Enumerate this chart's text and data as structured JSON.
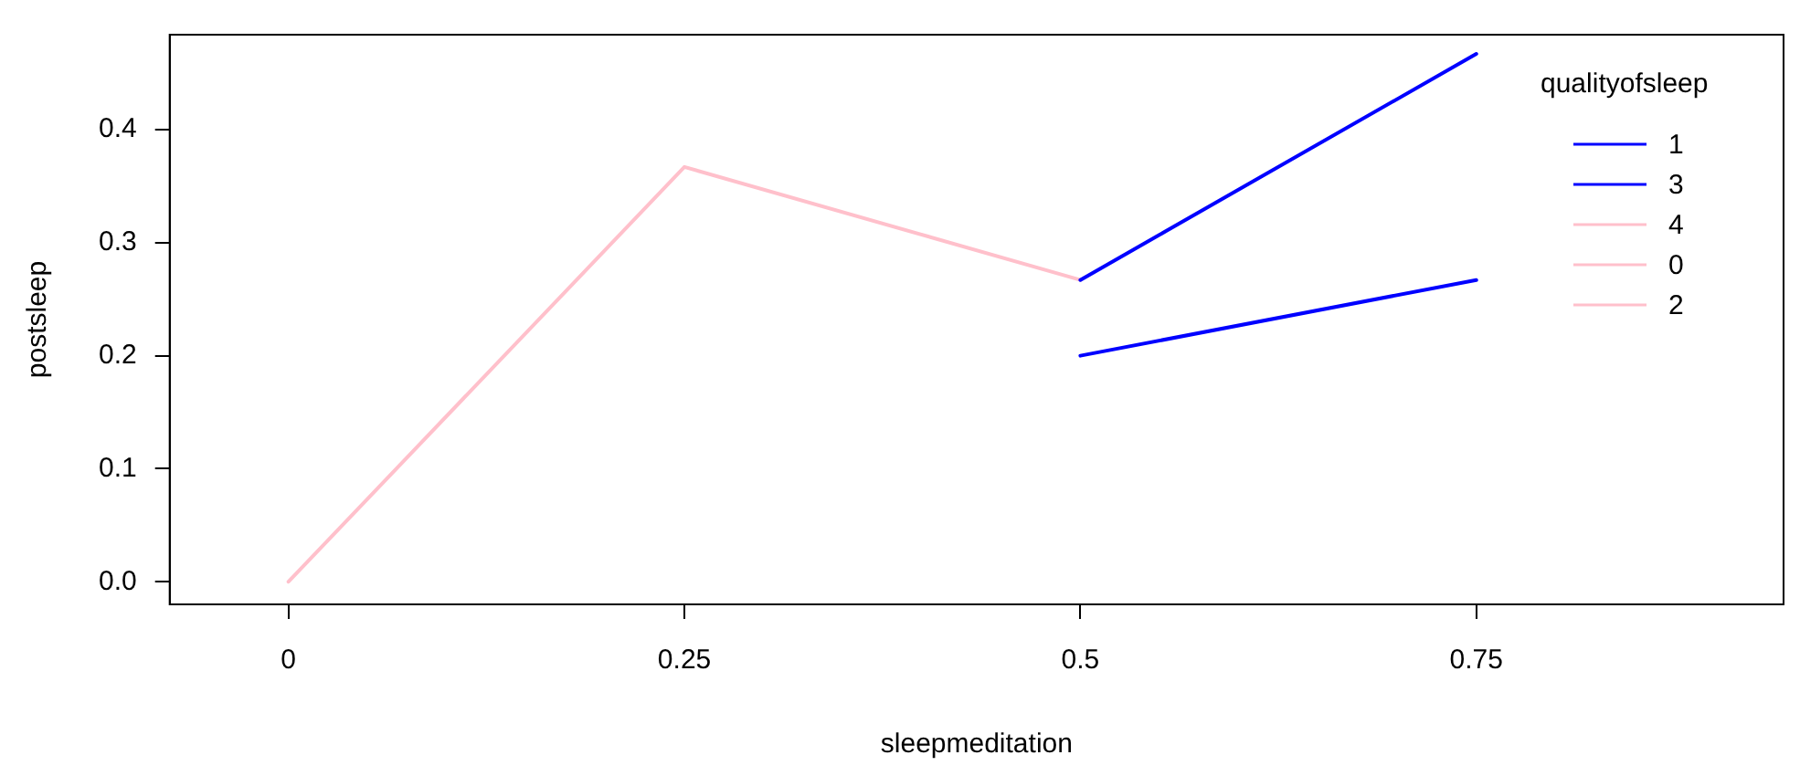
{
  "chart_data": {
    "type": "line",
    "xlabel": "sleepmeditation",
    "ylabel": "postsleep",
    "legend_title": "qualityofsleep",
    "legend": "top right",
    "grid": false,
    "line_style": "solid",
    "marker": "none",
    "x": [
      0,
      0.25,
      0.5,
      0.75
    ],
    "xlim": [
      -0.075,
      0.944
    ],
    "xticks": [
      0,
      0.25,
      0.5,
      0.75
    ],
    "ylim": [
      -0.02,
      0.484
    ],
    "yticks": [
      {
        "value": 0,
        "label": "0.0"
      },
      {
        "value": 0.1,
        "label": "0.1"
      },
      {
        "value": 0.2,
        "label": "0.2"
      },
      {
        "value": 0.3,
        "label": "0.3"
      },
      {
        "value": 0.4,
        "label": "0.4"
      }
    ],
    "series": [
      {
        "name": "1",
        "color": "#0000ff",
        "values": [
          null,
          null,
          0.267,
          0.467
        ]
      },
      {
        "name": "3",
        "color": "#0000ff",
        "values": [
          null,
          null,
          0.2,
          0.267
        ]
      },
      {
        "name": "4",
        "color": "#ffc0cb",
        "values": [
          0,
          0.367,
          0.267,
          null
        ]
      },
      {
        "name": "0",
        "color": "#ffc0cb",
        "values": [
          null,
          null,
          null,
          null
        ]
      },
      {
        "name": "2",
        "color": "#ffc0cb",
        "values": [
          null,
          null,
          null,
          null
        ]
      }
    ]
  }
}
